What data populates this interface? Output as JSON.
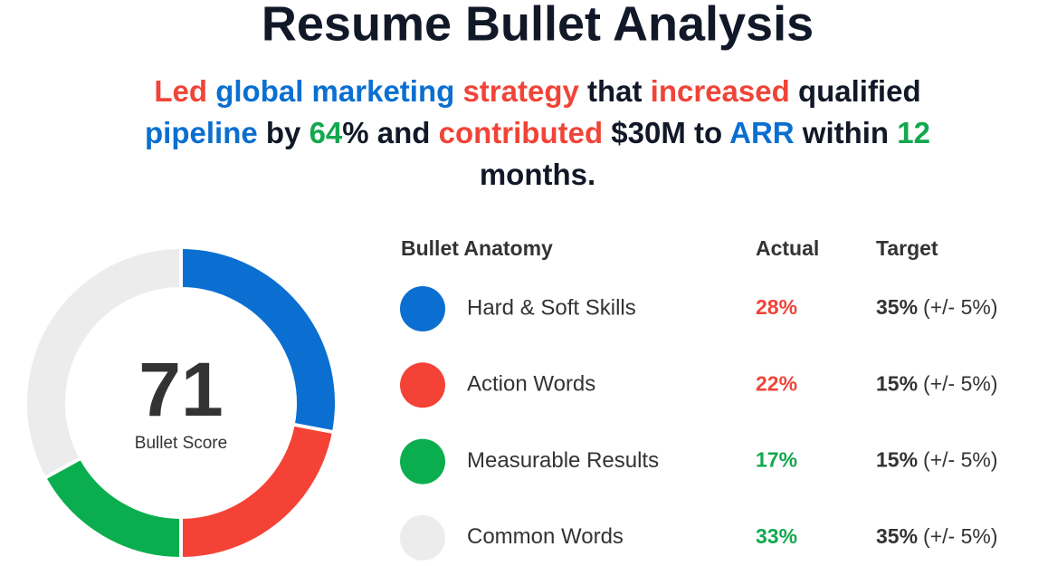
{
  "header": {
    "title": "Resume Bullet Analysis"
  },
  "bullet": {
    "lines": [
      [
        {
          "text": "Led ",
          "color": "#f04438"
        },
        {
          "text": "global marketing ",
          "color": "#0a6fd0"
        },
        {
          "text": "strategy ",
          "color": "#f04438"
        },
        {
          "text": "that ",
          "color": "#111827"
        },
        {
          "text": "increased ",
          "color": "#f04438"
        },
        {
          "text": "qualified",
          "color": "#111827"
        }
      ],
      [
        {
          "text": "pipeline ",
          "color": "#0a6fd0"
        },
        {
          "text": "by ",
          "color": "#111827"
        },
        {
          "text": "64",
          "color": "#12a84e"
        },
        {
          "text": "% and ",
          "color": "#111827"
        },
        {
          "text": "contributed ",
          "color": "#f04438"
        },
        {
          "text": "$30M to ",
          "color": "#111827"
        },
        {
          "text": "ARR ",
          "color": "#0a6fd0"
        },
        {
          "text": "within ",
          "color": "#111827"
        },
        {
          "text": "12",
          "color": "#12a84e"
        }
      ],
      [
        {
          "text": "months.",
          "color": "#111827"
        }
      ]
    ]
  },
  "score": {
    "value": "71",
    "label": "Bullet Score"
  },
  "table": {
    "columns": [
      "Bullet Anatomy",
      "Actual",
      "Target"
    ],
    "rows": [
      {
        "name": "Hard & Soft Skills",
        "color": "#0a6fd0",
        "actual": {
          "value": 28,
          "label": "28%"
        },
        "actual_color": "#f04438",
        "target": "35%",
        "tolerance": "(+/- 5%)"
      },
      {
        "name": "Action Words",
        "color": "#f44336",
        "actual": {
          "value": 22,
          "label": "22%"
        },
        "actual_color": "#f04438",
        "target": "15%",
        "tolerance": "(+/- 5%)"
      },
      {
        "name": "Measurable Results",
        "color": "#0bae4f",
        "actual": {
          "value": 17,
          "label": "17%"
        },
        "actual_color": "#12a84e",
        "target": "15%",
        "tolerance": "(+/- 5%)"
      },
      {
        "name": "Common Words",
        "color": "#ececec",
        "actual": {
          "value": 33,
          "label": "33%"
        },
        "actual_color": "#12a84e",
        "target": "35%",
        "tolerance": "(+/- 5%)"
      }
    ]
  }
}
